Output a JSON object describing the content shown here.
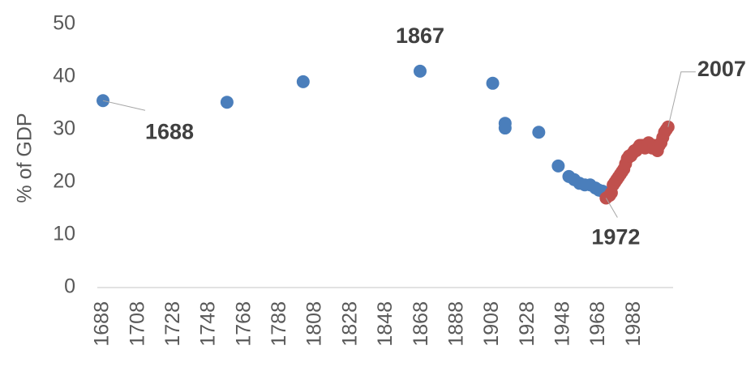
{
  "chart_data": {
    "type": "scatter",
    "y_label": "% of GDP",
    "xlim": [
      1688,
      2008
    ],
    "ylim": [
      0,
      50
    ],
    "xticks": [
      1688,
      1708,
      1728,
      1748,
      1768,
      1788,
      1808,
      1828,
      1848,
      1868,
      1888,
      1908,
      1928,
      1948,
      1968,
      1988
    ],
    "yticks": [
      0,
      10,
      20,
      30,
      40,
      50
    ],
    "grid": false,
    "series": [
      {
        "color": "#4a7ebb",
        "x": [
          1688,
          1758,
          1801,
          1867,
          1908,
          1915,
          1915,
          1934,
          1945,
          1951,
          1954,
          1957,
          1960,
          1963,
          1966,
          1968,
          1970
        ],
        "values": [
          35.5,
          35.2,
          39.1,
          41.1,
          38.8,
          31.2,
          30.3,
          29.5,
          23.1,
          21.1,
          20.5,
          19.8,
          19.5,
          19.5,
          18.9,
          18.5,
          18.3
        ]
      },
      {
        "color": "#c0504d",
        "x": [
          1972,
          1974,
          1975,
          1976,
          1977,
          1978,
          1979,
          1980,
          1981,
          1982,
          1983,
          1984,
          1985,
          1986,
          1987,
          1988,
          1989,
          1990,
          1991,
          1992,
          1993,
          1994,
          1995,
          1996,
          1997,
          1998,
          1999,
          2000,
          2001,
          2002,
          2003,
          2004,
          2005,
          2006,
          2007
        ],
        "values": [
          17.0,
          17.5,
          18.0,
          19.5,
          20.0,
          20.5,
          21.0,
          21.5,
          22.0,
          22.5,
          23.5,
          24.5,
          25.0,
          25.0,
          25.5,
          26.0,
          26.0,
          26.5,
          27.0,
          27.0,
          27.0,
          26.5,
          27.0,
          27.5,
          27.0,
          26.5,
          27.0,
          26.5,
          26.0,
          27.0,
          27.5,
          28.5,
          29.5,
          30.0,
          30.5
        ]
      }
    ],
    "annotations": [
      {
        "text": "1688"
      },
      {
        "text": "1867"
      },
      {
        "text": "1972"
      },
      {
        "text": "2007"
      }
    ]
  }
}
